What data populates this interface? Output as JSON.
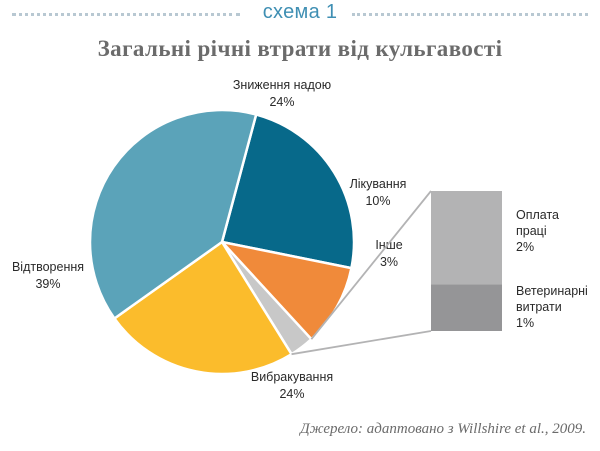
{
  "header": {
    "scheme_label": "схема 1"
  },
  "source_note": "Джерело: адаптовано з Willshire et al., 2009.",
  "chart_data": {
    "type": "pie",
    "title": "Загальні річні втрати від кульгавості",
    "slices": [
      {
        "name": "Зниження надою",
        "value": 24,
        "label": "24%",
        "color": "#07698a"
      },
      {
        "name": "Лікування",
        "value": 10,
        "label": "10%",
        "color": "#f08a3a"
      },
      {
        "name": "Інше",
        "value": 3,
        "label": "3%",
        "color": "#c8c8c8"
      },
      {
        "name": "Вибракування",
        "value": 24,
        "label": "24%",
        "color": "#fbbc2c"
      },
      {
        "name": "Відтворення",
        "value": 39,
        "label": "39%",
        "color": "#5ba3b9"
      }
    ],
    "breakdown": {
      "of": "Інше",
      "segments": [
        {
          "name": "Оплата праці",
          "lines": [
            "Оплата",
            "праці"
          ],
          "value": 2,
          "label": "2%",
          "color": "#b3b3b4"
        },
        {
          "name": "Ветеринарні витрати",
          "lines": [
            "Ветеринарні",
            "витрати"
          ],
          "value": 1,
          "label": "1%",
          "color": "#959597"
        }
      ]
    }
  }
}
